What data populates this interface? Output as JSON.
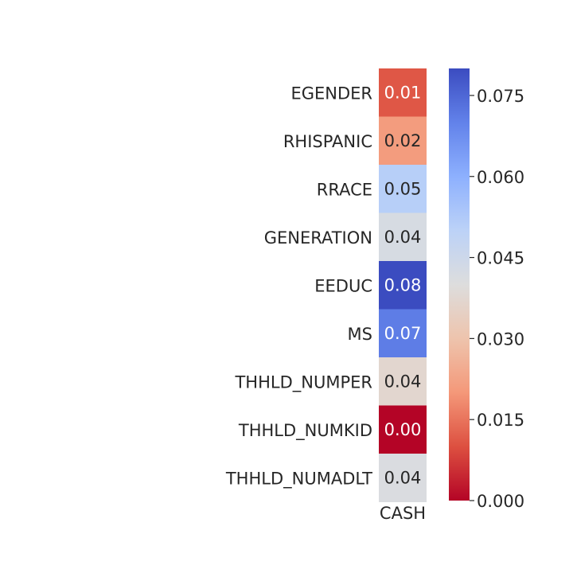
{
  "chart_data": {
    "type": "heatmap",
    "title": "",
    "xlabel": "",
    "ylabel": "",
    "columns": [
      "CASH"
    ],
    "rows": [
      "EGENDER",
      "RHISPANIC",
      "RRACE",
      "GENERATION",
      "EEDUC",
      "MS",
      "THHLD_NUMPER",
      "THHLD_NUMKID",
      "THHLD_NUMADLT"
    ],
    "values": [
      0.011,
      0.021,
      0.051,
      0.042,
      0.08,
      0.071,
      0.037,
      0.0,
      0.041
    ],
    "annotations": [
      "0.01",
      "0.02",
      "0.05",
      "0.04",
      "0.08",
      "0.07",
      "0.04",
      "0.00",
      "0.04"
    ],
    "colormap": "coolwarm_r",
    "vmin": 0.0,
    "vmax": 0.08,
    "colorbar": {
      "ticks": [
        0.0,
        0.015,
        0.03,
        0.045,
        0.06,
        0.075
      ],
      "tick_labels": [
        "0.000",
        "0.015",
        "0.030",
        "0.045",
        "0.060",
        "0.075"
      ],
      "position": "right"
    },
    "colors": {
      "low": "#b40426",
      "mid": "#dddddd",
      "high": "#3b4cc0",
      "text": "#262626"
    }
  }
}
